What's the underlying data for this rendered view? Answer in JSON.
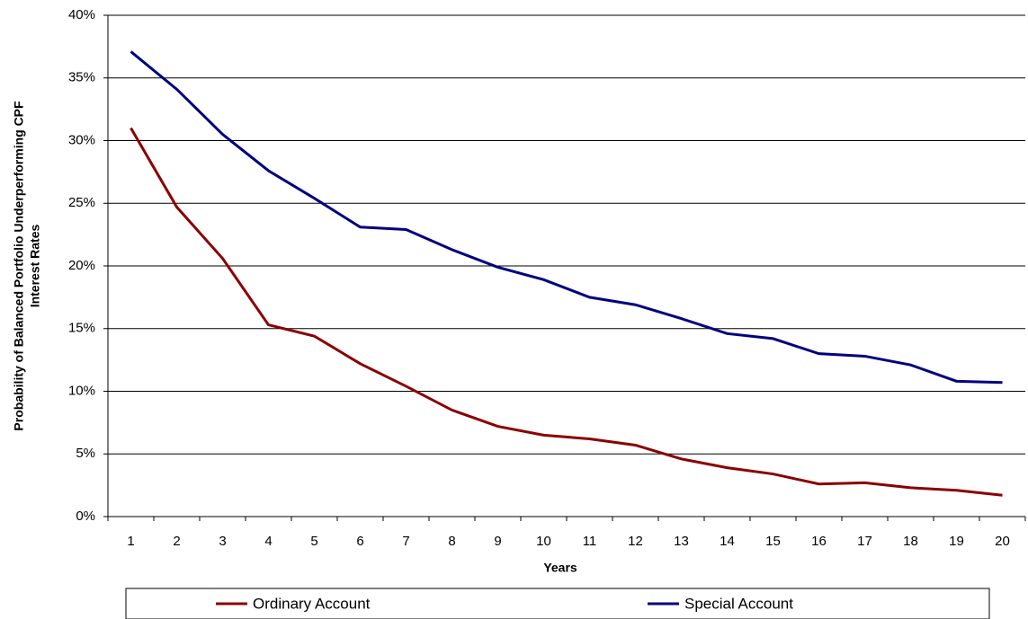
{
  "chart_data": {
    "type": "line",
    "x_label": "Years",
    "y_label": [
      "Probability of Balanced Portfolio Underperforming CPF",
      "Interest Rates"
    ],
    "categories": [
      "1",
      "2",
      "3",
      "4",
      "5",
      "6",
      "7",
      "8",
      "9",
      "10",
      "11",
      "12",
      "13",
      "14",
      "15",
      "16",
      "17",
      "18",
      "19",
      "20"
    ],
    "series": [
      {
        "name": "Ordinary Account",
        "color": "#8b0000",
        "values": [
          31.0,
          24.7,
          20.6,
          15.3,
          14.4,
          12.2,
          10.4,
          8.5,
          7.2,
          6.5,
          6.2,
          5.7,
          4.6,
          3.9,
          3.4,
          2.6,
          2.7,
          2.3,
          2.1,
          1.7
        ]
      },
      {
        "name": "Special Account",
        "color": "#000080",
        "values": [
          37.1,
          34.1,
          30.5,
          27.6,
          25.4,
          23.1,
          22.9,
          21.3,
          19.9,
          18.9,
          17.5,
          16.9,
          15.8,
          14.6,
          14.2,
          13.0,
          12.8,
          12.1,
          10.8,
          10.7
        ]
      }
    ],
    "ylim": [
      0,
      40
    ],
    "yticks": [
      {
        "value": 0,
        "label": "0%"
      },
      {
        "value": 5,
        "label": "5%"
      },
      {
        "value": 10,
        "label": "10%"
      },
      {
        "value": 15,
        "label": "15%"
      },
      {
        "value": 20,
        "label": "20%"
      },
      {
        "value": 25,
        "label": "25%"
      },
      {
        "value": 30,
        "label": "30%"
      },
      {
        "value": 35,
        "label": "35%"
      },
      {
        "value": 40,
        "label": "40%"
      }
    ],
    "grid": true,
    "legend": "bottom"
  }
}
